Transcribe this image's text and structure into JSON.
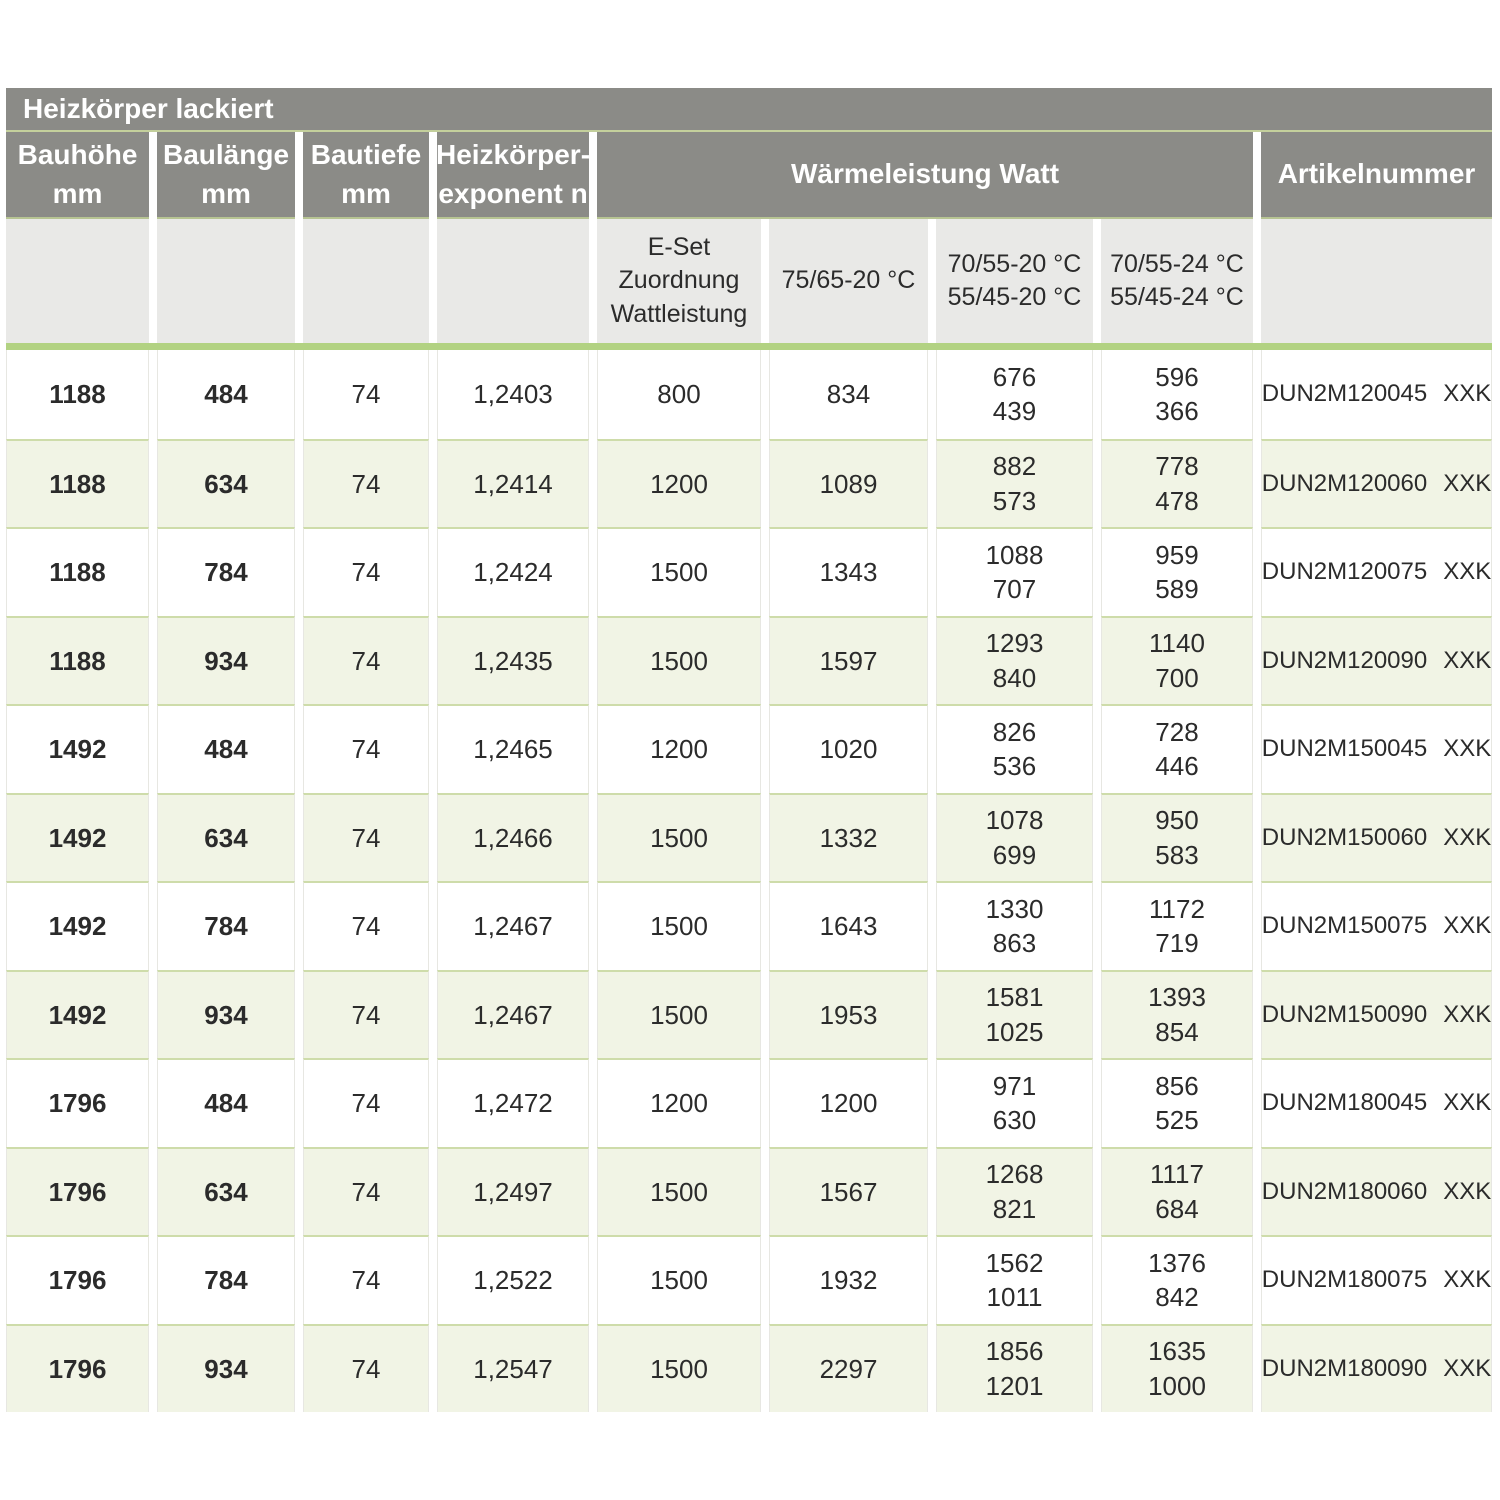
{
  "table": {
    "title": "Heizkörper lackiert",
    "header": {
      "bauhoehe": "Bauhöhe\nmm",
      "baulaenge": "Baulänge\nmm",
      "bautiefe": "Bautiefe\nmm",
      "exponent": "Heizkörper-\nexponent n",
      "waermeleistung": "Wärmeleistung Watt",
      "artikelnummer": "Artikelnummer"
    },
    "subheader": {
      "eset": "E-Set\nZuordnung\nWattleistung",
      "t_7565_20": "75/65-20 °C",
      "t_7055_20": "70/55-20 °C\n55/45-20 °C",
      "t_7055_24": "70/55-24 °C\n55/45-24 °C"
    },
    "colors": {
      "header_gray": "#8b8b87",
      "subheader_gray": "#e9e9e7",
      "row_green": "#f1f4e5",
      "band_green": "#b2d282",
      "separator_green": "#cedcaa",
      "dot_green": "#8cbf45"
    },
    "rows": [
      {
        "bauhoehe": "1188",
        "baulaenge": "484",
        "bautiefe": "74",
        "exponent": "1,2403",
        "eset": "800",
        "watt_7565": "834",
        "watt_7055_20": "676\n439",
        "watt_7055_24": "596\n366",
        "artikel": "DUN2M120045",
        "artikel_suffix": "XXK"
      },
      {
        "bauhoehe": "1188",
        "baulaenge": "634",
        "bautiefe": "74",
        "exponent": "1,2414",
        "eset": "1200",
        "watt_7565": "1089",
        "watt_7055_20": "882\n573",
        "watt_7055_24": "778\n478",
        "artikel": "DUN2M120060",
        "artikel_suffix": "XXK"
      },
      {
        "bauhoehe": "1188",
        "baulaenge": "784",
        "bautiefe": "74",
        "exponent": "1,2424",
        "eset": "1500",
        "watt_7565": "1343",
        "watt_7055_20": "1088\n707",
        "watt_7055_24": "959\n589",
        "artikel": "DUN2M120075",
        "artikel_suffix": "XXK"
      },
      {
        "bauhoehe": "1188",
        "baulaenge": "934",
        "bautiefe": "74",
        "exponent": "1,2435",
        "eset": "1500",
        "watt_7565": "1597",
        "watt_7055_20": "1293\n840",
        "watt_7055_24": "1140\n700",
        "artikel": "DUN2M120090",
        "artikel_suffix": "XXK"
      },
      {
        "bauhoehe": "1492",
        "baulaenge": "484",
        "bautiefe": "74",
        "exponent": "1,2465",
        "eset": "1200",
        "watt_7565": "1020",
        "watt_7055_20": "826\n536",
        "watt_7055_24": "728\n446",
        "artikel": "DUN2M150045",
        "artikel_suffix": "XXK"
      },
      {
        "bauhoehe": "1492",
        "baulaenge": "634",
        "bautiefe": "74",
        "exponent": "1,2466",
        "eset": "1500",
        "watt_7565": "1332",
        "watt_7055_20": "1078\n699",
        "watt_7055_24": "950\n583",
        "artikel": "DUN2M150060",
        "artikel_suffix": "XXK"
      },
      {
        "bauhoehe": "1492",
        "baulaenge": "784",
        "bautiefe": "74",
        "exponent": "1,2467",
        "eset": "1500",
        "watt_7565": "1643",
        "watt_7055_20": "1330\n863",
        "watt_7055_24": "1172\n719",
        "artikel": "DUN2M150075",
        "artikel_suffix": "XXK"
      },
      {
        "bauhoehe": "1492",
        "baulaenge": "934",
        "bautiefe": "74",
        "exponent": "1,2467",
        "eset": "1500",
        "watt_7565": "1953",
        "watt_7055_20": "1581\n1025",
        "watt_7055_24": "1393\n854",
        "artikel": "DUN2M150090",
        "artikel_suffix": "XXK"
      },
      {
        "bauhoehe": "1796",
        "baulaenge": "484",
        "bautiefe": "74",
        "exponent": "1,2472",
        "eset": "1200",
        "watt_7565": "1200",
        "watt_7055_20": "971\n630",
        "watt_7055_24": "856\n525",
        "artikel": "DUN2M180045",
        "artikel_suffix": "XXK"
      },
      {
        "bauhoehe": "1796",
        "baulaenge": "634",
        "bautiefe": "74",
        "exponent": "1,2497",
        "eset": "1500",
        "watt_7565": "1567",
        "watt_7055_20": "1268\n821",
        "watt_7055_24": "1117\n684",
        "artikel": "DUN2M180060",
        "artikel_suffix": "XXK"
      },
      {
        "bauhoehe": "1796",
        "baulaenge": "784",
        "bautiefe": "74",
        "exponent": "1,2522",
        "eset": "1500",
        "watt_7565": "1932",
        "watt_7055_20": "1562\n1011",
        "watt_7055_24": "1376\n842",
        "artikel": "DUN2M180075",
        "artikel_suffix": "XXK"
      },
      {
        "bauhoehe": "1796",
        "baulaenge": "934",
        "bautiefe": "74",
        "exponent": "1,2547",
        "eset": "1500",
        "watt_7565": "2297",
        "watt_7055_20": "1856\n1201",
        "watt_7055_24": "1635\n1000",
        "artikel": "DUN2M180090",
        "artikel_suffix": "XXK"
      }
    ]
  }
}
